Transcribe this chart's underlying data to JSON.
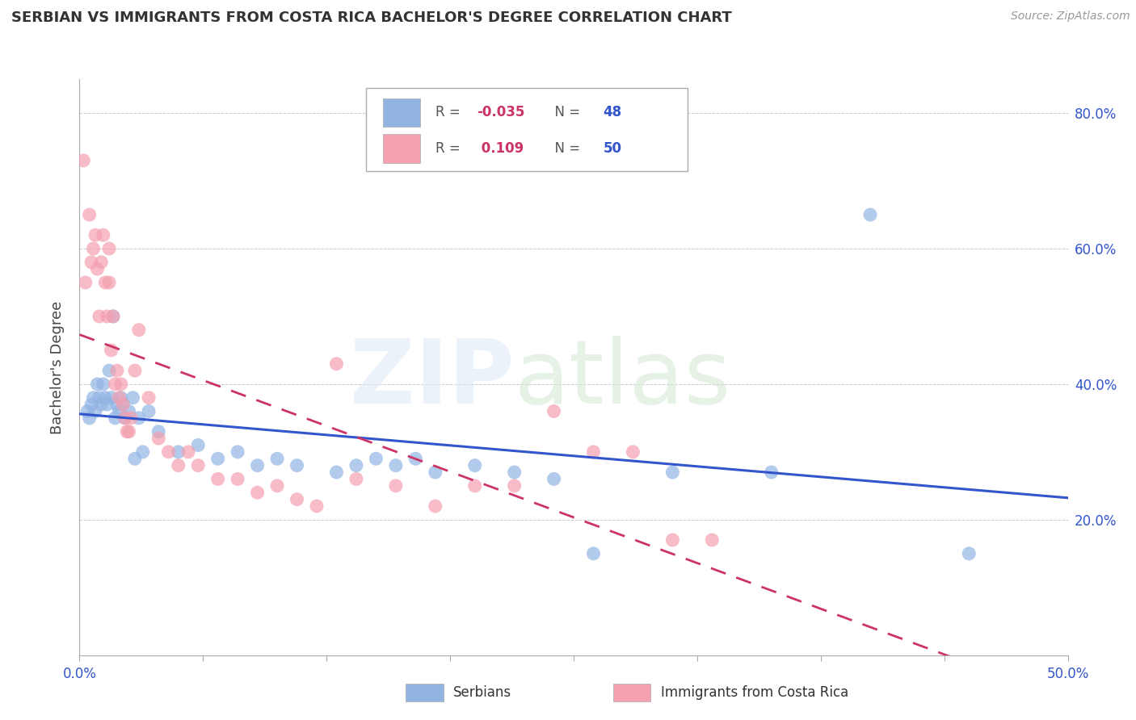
{
  "title": "SERBIAN VS IMMIGRANTS FROM COSTA RICA BACHELOR'S DEGREE CORRELATION CHART",
  "source": "Source: ZipAtlas.com",
  "ylabel": "Bachelor's Degree",
  "xlim": [
    0.0,
    50.0
  ],
  "ylim": [
    0.0,
    85.0
  ],
  "ytick_vals": [
    20.0,
    40.0,
    60.0,
    80.0
  ],
  "xtick_vals": [
    0.0,
    6.25,
    12.5,
    18.75,
    25.0,
    31.25,
    37.5,
    43.75,
    50.0
  ],
  "xtick_labels": [
    "0.0%",
    "",
    "",
    "",
    "",
    "",
    "",
    "",
    "50.0%"
  ],
  "serbian_color": "#92b4e3",
  "immigrant_color": "#f4a0b0",
  "serbian_line_color": "#3355cc",
  "immigrant_line_color": "#cc3366",
  "r_color": "#cc3366",
  "n_color": "#3355cc",
  "serbian_r": "-0.035",
  "serbian_n": "48",
  "immigrant_r": "0.109",
  "immigrant_n": "50",
  "serbian_x": [
    0.4,
    0.5,
    0.6,
    0.7,
    0.8,
    0.9,
    1.0,
    1.1,
    1.2,
    1.3,
    1.4,
    1.5,
    1.6,
    1.7,
    1.8,
    1.9,
    2.0,
    2.1,
    2.2,
    2.3,
    2.5,
    2.7,
    3.0,
    3.5,
    4.0,
    5.0,
    6.0,
    7.0,
    8.0,
    9.0,
    10.0,
    11.0,
    13.0,
    14.0,
    15.0,
    16.0,
    17.0,
    18.0,
    20.0,
    22.0,
    24.0,
    26.0,
    30.0,
    35.0,
    40.0,
    45.0,
    2.8,
    3.2
  ],
  "serbian_y": [
    36.0,
    35.0,
    37.0,
    38.0,
    36.0,
    40.0,
    38.0,
    37.0,
    40.0,
    38.0,
    37.0,
    42.0,
    38.0,
    50.0,
    35.0,
    37.0,
    36.0,
    38.0,
    37.0,
    35.0,
    36.0,
    38.0,
    35.0,
    36.0,
    33.0,
    30.0,
    31.0,
    29.0,
    30.0,
    28.0,
    29.0,
    28.0,
    27.0,
    28.0,
    29.0,
    28.0,
    29.0,
    27.0,
    28.0,
    27.0,
    26.0,
    15.0,
    27.0,
    27.0,
    65.0,
    15.0,
    29.0,
    30.0
  ],
  "immigrant_x": [
    0.2,
    0.3,
    0.5,
    0.6,
    0.7,
    0.8,
    0.9,
    1.0,
    1.1,
    1.2,
    1.3,
    1.4,
    1.5,
    1.6,
    1.7,
    1.8,
    1.9,
    2.0,
    2.1,
    2.2,
    2.3,
    2.4,
    2.6,
    2.8,
    3.0,
    3.5,
    4.0,
    4.5,
    5.0,
    5.5,
    6.0,
    7.0,
    8.0,
    9.0,
    10.0,
    11.0,
    12.0,
    13.0,
    14.0,
    16.0,
    18.0,
    20.0,
    22.0,
    24.0,
    26.0,
    28.0,
    30.0,
    32.0,
    1.5,
    2.5
  ],
  "immigrant_y": [
    73.0,
    55.0,
    65.0,
    58.0,
    60.0,
    62.0,
    57.0,
    50.0,
    58.0,
    62.0,
    55.0,
    50.0,
    55.0,
    45.0,
    50.0,
    40.0,
    42.0,
    38.0,
    40.0,
    37.0,
    35.0,
    33.0,
    35.0,
    42.0,
    48.0,
    38.0,
    32.0,
    30.0,
    28.0,
    30.0,
    28.0,
    26.0,
    26.0,
    24.0,
    25.0,
    23.0,
    22.0,
    43.0,
    26.0,
    25.0,
    22.0,
    25.0,
    25.0,
    36.0,
    30.0,
    30.0,
    17.0,
    17.0,
    60.0,
    33.0
  ]
}
